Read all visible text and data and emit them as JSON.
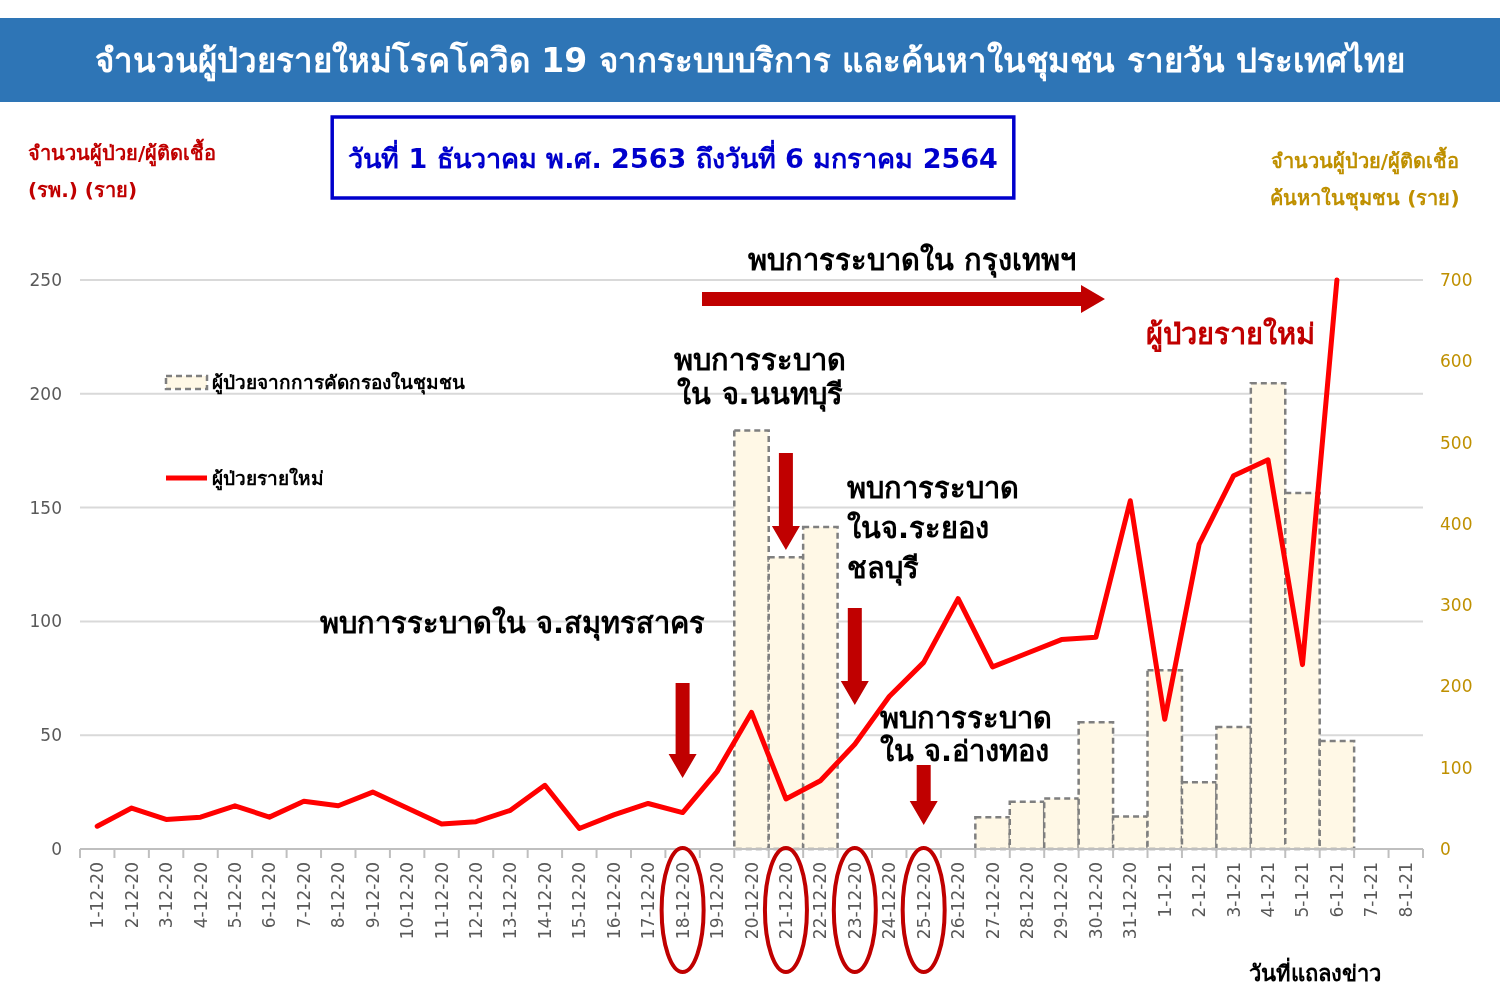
{
  "chart_data": {
    "type": "bar",
    "title": "จำนวนผู้ป่วยรายใหม่โรคโควิด 19 จากระบบบริการ และค้นหาในชุมชน รายวัน ประเทศไทย",
    "subtitle": "วันที่ 1 ธันวาคม พ.ศ. 2563 ถึงวันที่ 6 มกราคม 2564",
    "xlabel": "วันที่แถลงข่าว",
    "ylabel": "จำนวนผู้ป่วย/ผู้ติดเชื้อ\n(รพ.) (ราย)",
    "y2label": "จำนวนผู้ป่วย/ผู้ติดเชื้อ\nค้นหาในชุมชน (ราย)",
    "categories": [
      "1-12-20",
      "2-12-20",
      "3-12-20",
      "4-12-20",
      "5-12-20",
      "6-12-20",
      "7-12-20",
      "8-12-20",
      "9-12-20",
      "10-12-20",
      "11-12-20",
      "12-12-20",
      "13-12-20",
      "14-12-20",
      "15-12-20",
      "16-12-20",
      "17-12-20",
      "18-12-20",
      "19-12-20",
      "20-12-20",
      "21-12-20",
      "22-12-20",
      "23-12-20",
      "24-12-20",
      "25-12-20",
      "26-12-20",
      "27-12-20",
      "28-12-20",
      "29-12-20",
      "30-12-20",
      "31-12-20",
      "1-1-21",
      "2-1-21",
      "3-1-21",
      "4-1-21",
      "5-1-21",
      "6-1-21",
      "7-1-21",
      "8-1-21"
    ],
    "series": [
      {
        "name": "ผู้ป่วยจากการคัดกรองในชุมชน",
        "axis": "y2",
        "color": "#FFF8E6",
        "values": [
          null,
          null,
          null,
          null,
          null,
          null,
          null,
          null,
          null,
          null,
          null,
          null,
          null,
          null,
          null,
          null,
          null,
          null,
          null,
          515,
          359,
          396,
          null,
          null,
          null,
          null,
          39,
          58,
          62,
          156,
          40,
          220,
          82,
          150,
          573,
          438,
          133,
          null,
          null
        ]
      },
      {
        "name": "ผู้ป่วยรายใหม่",
        "type": "line",
        "color": "#FF0000",
        "values": [
          10,
          18,
          13,
          14,
          19,
          14,
          21,
          19,
          25,
          18,
          11,
          12,
          17,
          28,
          9,
          15,
          20,
          16,
          34,
          60,
          22,
          30,
          46,
          67,
          82,
          110,
          80,
          86,
          92,
          93,
          153,
          57,
          134,
          164,
          171,
          81,
          250,
          null,
          null
        ]
      }
    ],
    "ylim": [
      0,
      250
    ],
    "yticks": [
      0,
      50,
      100,
      150,
      200,
      250
    ],
    "y2lim": [
      0,
      700
    ],
    "y2ticks": [
      0,
      100,
      200,
      300,
      400,
      500,
      600,
      700
    ],
    "grid": "y",
    "legend": "top left",
    "annotations": [
      "พบการระบาดใน กรุงเทพฯ",
      "พบการระบาด\nใน จ.นนทบุรี",
      "พบการระบาด\nในจ.ระยอง\nชลบุรี",
      "พบการระบาดใน จ.สมุทรสาคร",
      "พบการระบาด\nใน จ.อ่างทอง",
      "ผู้ป่วยรายใหม่"
    ]
  }
}
